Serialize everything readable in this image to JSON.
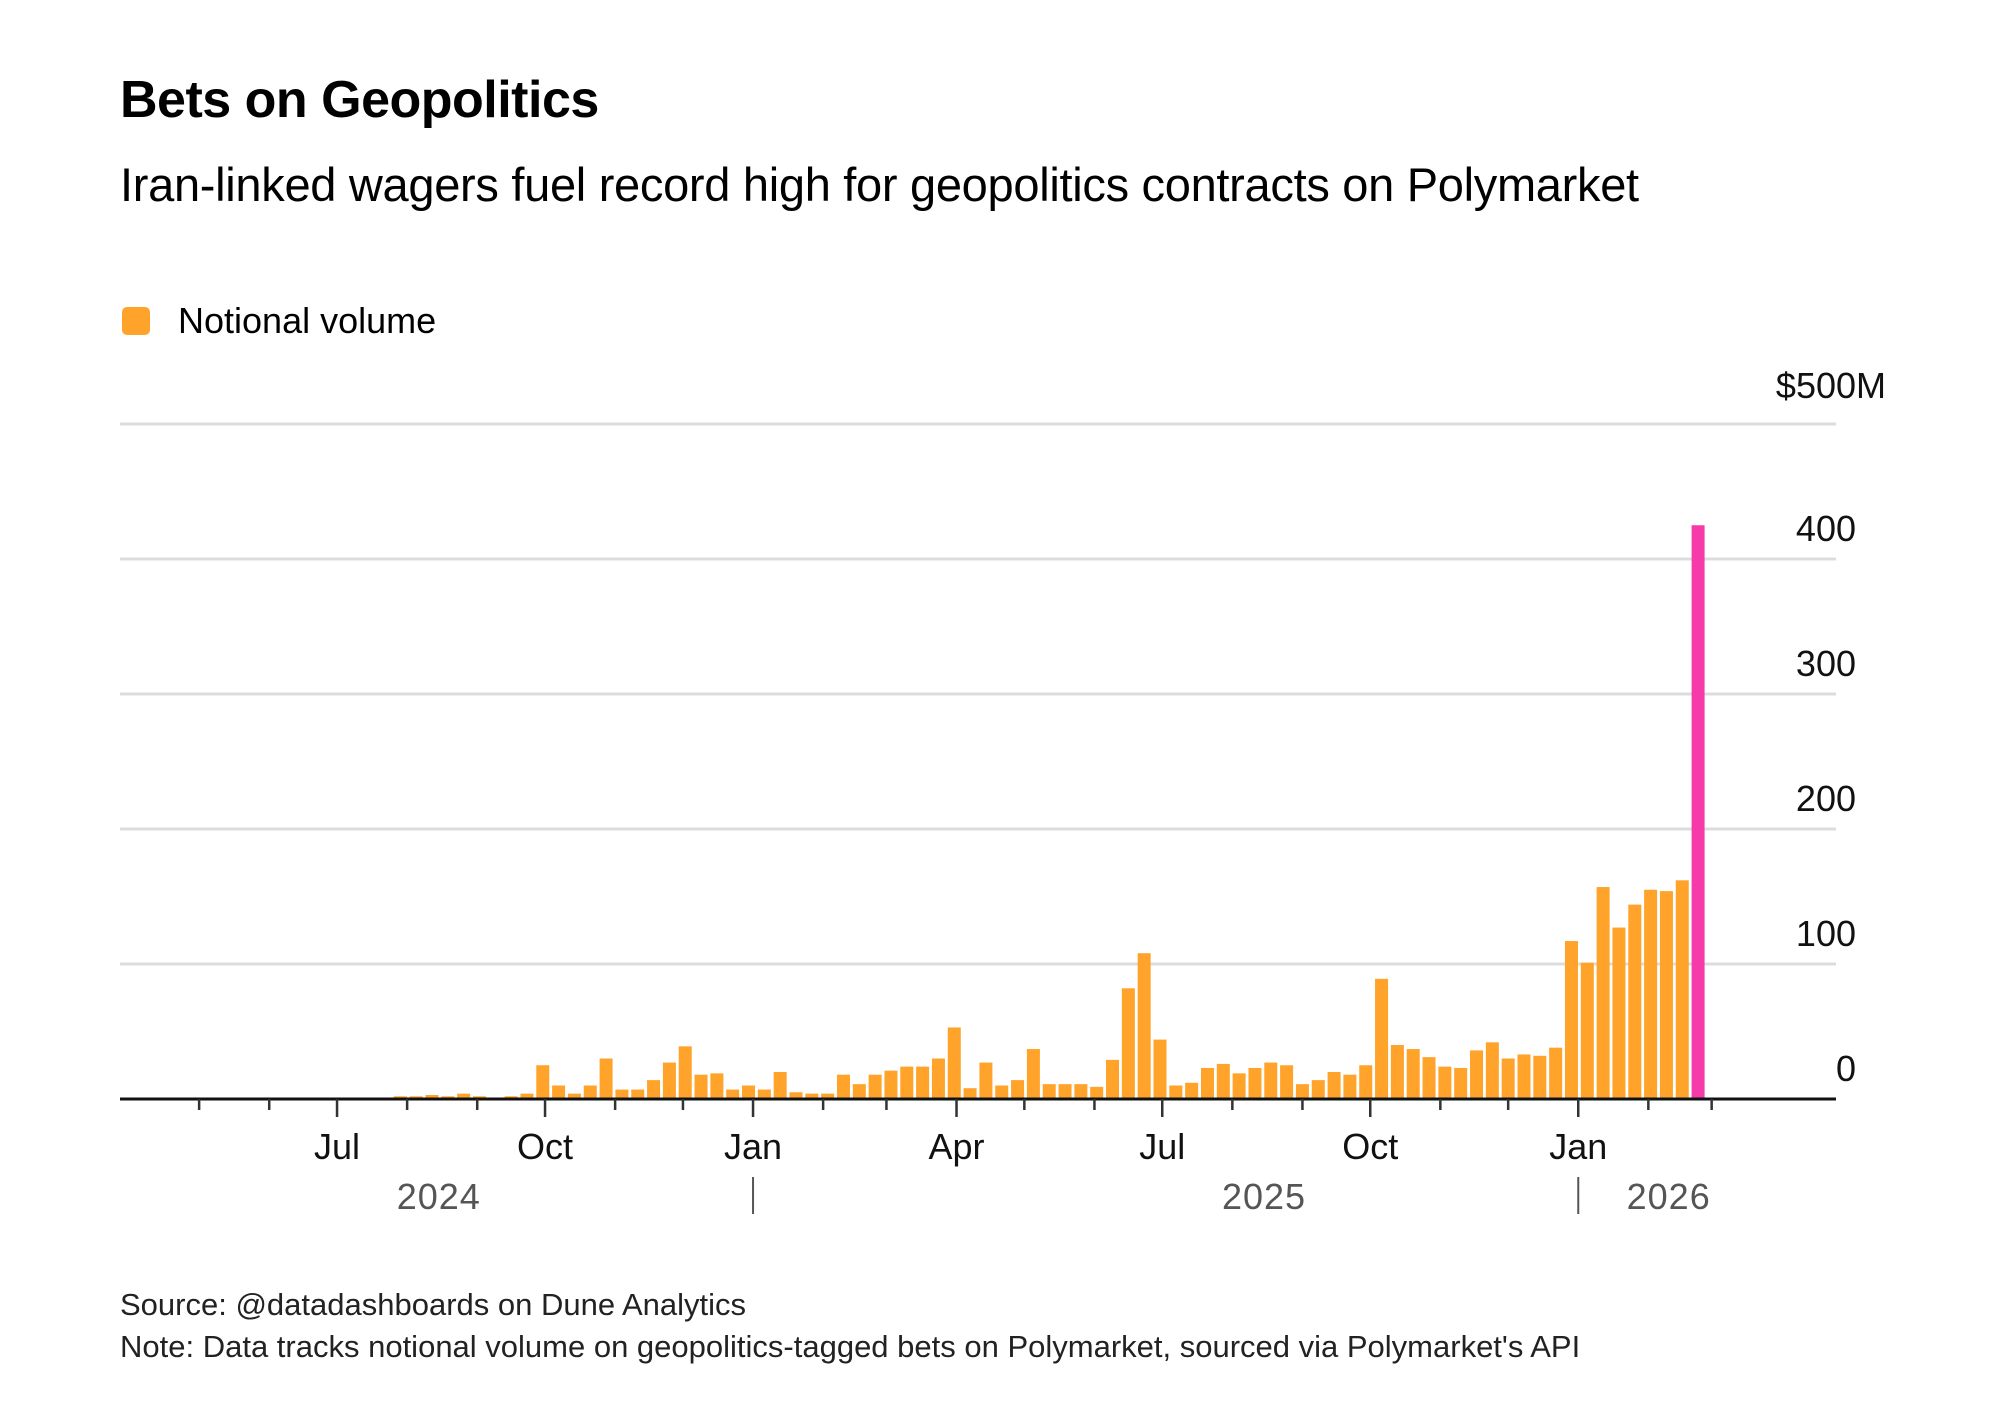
{
  "header": {
    "title": "Bets on Geopolitics",
    "subtitle": "Iran-linked wagers fuel record high for geopolitics contracts on Polymarket"
  },
  "legend": {
    "label": "Notional volume",
    "color": "#FFA32B"
  },
  "footer": {
    "source": "Source: @datadashboards on Dune Analytics",
    "note": "Note: Data tracks notional volume on geopolitics-tagged bets on Polymarket, sourced via Polymarket's API"
  },
  "chart_data": {
    "type": "bar",
    "title": "Bets on Geopolitics",
    "subtitle": "Iran-linked wagers fuel record high for geopolitics contracts on Polymarket",
    "xlabel": "",
    "ylabel": "Notional volume ($M)",
    "y_unit_label": "$500M",
    "ylim": [
      0,
      500
    ],
    "yticks": [
      0,
      100,
      200,
      300,
      400,
      500
    ],
    "ytick_labels": [
      "0",
      "100",
      "200",
      "300",
      "400",
      "$500M"
    ],
    "y_axis_side": "right",
    "grid": true,
    "legend_position": "top-left",
    "x_domain": [
      "2024-03-27",
      "2026-04-25"
    ],
    "x_frequency": "weekly",
    "first_week": "2024-07-29",
    "month_ticks": [
      "2024-05-01",
      "2024-06-01",
      "2024-07-01",
      "2024-08-01",
      "2024-09-01",
      "2024-10-01",
      "2024-11-01",
      "2024-12-01",
      "2025-01-01",
      "2025-02-01",
      "2025-03-01",
      "2025-04-01",
      "2025-05-01",
      "2025-06-01",
      "2025-07-01",
      "2025-08-01",
      "2025-09-01",
      "2025-10-01",
      "2025-11-01",
      "2025-12-01",
      "2026-01-01",
      "2026-02-01",
      "2026-03-01"
    ],
    "month_labels": [
      {
        "date": "2024-07-01",
        "label": "Jul"
      },
      {
        "date": "2024-10-01",
        "label": "Oct"
      },
      {
        "date": "2025-01-01",
        "label": "Jan"
      },
      {
        "date": "2025-04-01",
        "label": "Apr"
      },
      {
        "date": "2025-07-01",
        "label": "Jul"
      },
      {
        "date": "2025-10-01",
        "label": "Oct"
      },
      {
        "date": "2026-01-01",
        "label": "Jan"
      }
    ],
    "year_labels": [
      {
        "date": "2024-08-15",
        "label": "2024"
      },
      {
        "date": "2025-08-15",
        "label": "2025"
      },
      {
        "date": "2026-02-10",
        "label": "2026"
      }
    ],
    "year_dividers": [
      "2025-01-01",
      "2026-01-01"
    ],
    "series": [
      {
        "name": "Notional volume",
        "color": "#FFA32B",
        "highlight_color": "#F53AA9",
        "highlight_index": 82,
        "values": [
          2,
          2,
          3,
          2,
          4,
          2,
          1,
          2,
          4,
          25,
          10,
          4,
          10,
          30,
          7,
          7,
          14,
          27,
          39,
          18,
          19,
          7,
          10,
          7,
          20,
          5,
          4,
          4,
          18,
          11,
          18,
          21,
          24,
          24,
          30,
          53,
          8,
          27,
          10,
          14,
          37,
          11,
          11,
          11,
          9,
          29,
          82,
          108,
          44,
          10,
          12,
          23,
          26,
          19,
          23,
          27,
          25,
          11,
          14,
          20,
          18,
          25,
          89,
          40,
          37,
          31,
          24,
          23,
          36,
          42,
          30,
          33,
          32,
          38,
          117,
          101,
          157,
          127,
          144,
          155,
          154,
          162,
          425
        ]
      }
    ]
  }
}
